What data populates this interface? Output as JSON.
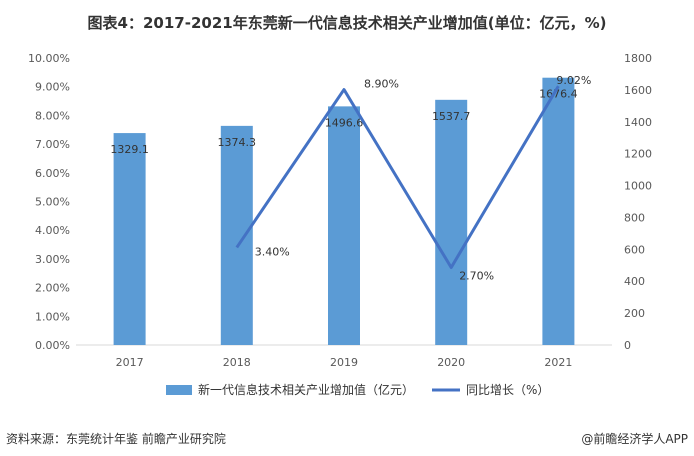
{
  "chart_data": {
    "type": "bar",
    "title": "图表4：2017-2021年东莞新一代信息技术相关产业增加值(单位：亿元，%)",
    "categories": [
      "2017",
      "2018",
      "2019",
      "2020",
      "2021"
    ],
    "series": [
      {
        "name": "新一代信息技术相关产业增加值（亿元）",
        "type": "bar",
        "axis": "right",
        "values": [
          1329.1,
          1374.3,
          1496.6,
          1537.7,
          1676.4
        ],
        "labels": [
          "1329.1",
          "1374.3",
          "1496.6",
          "1537.7",
          "1676.4"
        ]
      },
      {
        "name": "同比增长（%）",
        "type": "line",
        "axis": "left",
        "values": [
          null,
          3.4,
          8.9,
          2.7,
          9.02
        ],
        "labels": [
          "",
          "3.40%",
          "8.90%",
          "2.70%",
          "9.02%"
        ]
      }
    ],
    "y_left": {
      "ylim": [
        0,
        10
      ],
      "ticks": [
        "0.00%",
        "1.00%",
        "2.00%",
        "3.00%",
        "4.00%",
        "5.00%",
        "6.00%",
        "7.00%",
        "8.00%",
        "9.00%",
        "10.00%"
      ]
    },
    "y_right": {
      "ylim": [
        0,
        1800
      ],
      "ticks": [
        "0",
        "200",
        "400",
        "600",
        "800",
        "1000",
        "1200",
        "1400",
        "1600",
        "1800"
      ]
    },
    "grid": false,
    "legend": "bottom"
  },
  "colors": {
    "bar": "#5b9bd5",
    "line": "#4472c4"
  },
  "footer": {
    "source": "资料来源：东莞统计年鉴 前瞻产业研究院",
    "brand": "@前瞻经济学人APP"
  }
}
